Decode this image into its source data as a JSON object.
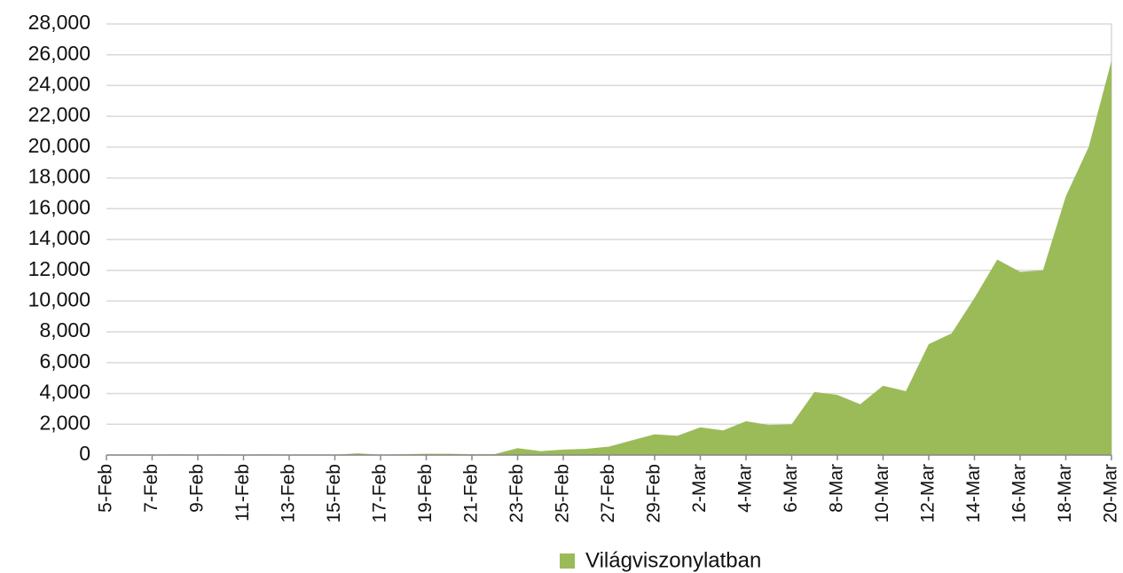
{
  "chart_data": {
    "type": "area",
    "categories": [
      "5-Feb",
      null,
      "7-Feb",
      null,
      "9-Feb",
      null,
      "11-Feb",
      null,
      "13-Feb",
      null,
      "15-Feb",
      null,
      "17-Feb",
      null,
      "19-Feb",
      null,
      "21-Feb",
      null,
      "23-Feb",
      null,
      "25-Feb",
      null,
      "27-Feb",
      null,
      "29-Feb",
      null,
      "2-Mar",
      null,
      "4-Mar",
      null,
      "6-Mar",
      null,
      "8-Mar",
      null,
      "10-Mar",
      null,
      "12-Mar",
      null,
      "14-Mar",
      null,
      "16-Mar",
      null,
      "18-Mar",
      null,
      "20-Mar"
    ],
    "series": [
      {
        "name": "Világviszonylatban",
        "color": "#9bbb59",
        "values": [
          20,
          30,
          20,
          40,
          30,
          40,
          30,
          40,
          30,
          20,
          20,
          110,
          20,
          50,
          80,
          80,
          50,
          60,
          450,
          250,
          350,
          400,
          550,
          950,
          1350,
          1250,
          1800,
          1600,
          2200,
          1950,
          2000,
          4100,
          3900,
          3300,
          4500,
          4150,
          7200,
          7900,
          10200,
          12700,
          11900,
          12000,
          16800,
          20000,
          25600
        ]
      }
    ],
    "ylim": [
      0,
      28000
    ],
    "yticks": [
      0,
      {
        "value": 2000,
        "label": "2,000"
      },
      {
        "value": 4000,
        "label": "4,000"
      },
      {
        "value": 6000,
        "label": "6,000"
      },
      {
        "value": 8000,
        "label": "8,000"
      },
      {
        "value": 10000,
        "label": "10,000"
      },
      {
        "value": 12000,
        "label": "12,000"
      },
      {
        "value": 14000,
        "label": "14,000"
      },
      {
        "value": 16000,
        "label": "16,000"
      },
      {
        "value": 18000,
        "label": "18,000"
      },
      {
        "value": 20000,
        "label": "20,000"
      },
      {
        "value": 22000,
        "label": "22,000"
      },
      {
        "value": 24000,
        "label": "24,000"
      },
      {
        "value": 26000,
        "label": "26,000"
      },
      {
        "value": 28000,
        "label": "28,000"
      }
    ],
    "grid": true,
    "legend": "bottom"
  }
}
